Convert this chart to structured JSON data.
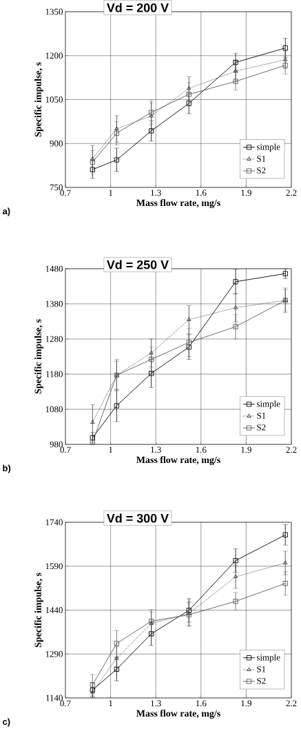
{
  "chart_data": [
    {
      "type": "line",
      "title": "Vd = 200 V",
      "xlabel": "Mass flow rate, mg/s",
      "ylabel": "Specific impulse, s",
      "annotations": [
        "a)"
      ],
      "x": [
        0.88,
        1.04,
        1.27,
        1.52,
        1.83,
        2.16
      ],
      "xlim": [
        0.7,
        2.2
      ],
      "xticks": [
        0.7,
        1,
        1.3,
        1.6,
        1.9,
        2.2
      ],
      "ylim": [
        750,
        1350
      ],
      "yticks": [
        750,
        900,
        1050,
        1200,
        1350
      ],
      "grid": true,
      "legend": "bottom right",
      "series": [
        {
          "name": "simple",
          "color": "#000000",
          "marker": "square",
          "line_style": "solid",
          "values": [
            811,
            844,
            943,
            1037,
            1177,
            1226
          ],
          "errors": [
            30,
            40,
            35,
            35,
            30,
            33
          ]
        },
        {
          "name": "S1",
          "color": "#3a3a3a",
          "marker": "triangle",
          "line_style": "dotted",
          "values": [
            848,
            950,
            994,
            1088,
            1147,
            1186
          ],
          "errors": [
            45,
            45,
            45,
            40,
            35,
            30
          ]
        },
        {
          "name": "S2",
          "color": "#5a5a5a",
          "marker": "square",
          "line_style": "solid",
          "values": [
            836,
            935,
            1006,
            1068,
            1112,
            1167
          ],
          "errors": [
            40,
            40,
            40,
            40,
            30,
            30
          ]
        }
      ]
    },
    {
      "type": "line",
      "title": "Vd = 250 V",
      "xlabel": "Mass flow rate, mg/s",
      "ylabel": "Specific impulse, s",
      "annotations": [
        "b)"
      ],
      "x": [
        0.88,
        1.04,
        1.27,
        1.52,
        1.83,
        2.16
      ],
      "xlim": [
        0.7,
        2.2
      ],
      "xticks": [
        0.7,
        1,
        1.3,
        1.6,
        1.9,
        2.2
      ],
      "ylim": [
        980,
        1480
      ],
      "yticks": [
        980,
        1080,
        1180,
        1280,
        1380,
        1480
      ],
      "grid": true,
      "legend": "bottom right",
      "series": [
        {
          "name": "simple",
          "color": "#000000",
          "marker": "square",
          "line_style": "solid",
          "values": [
            999,
            1090,
            1182,
            1257,
            1443,
            1466
          ],
          "errors": [
            15,
            45,
            40,
            35,
            35,
            14
          ]
        },
        {
          "name": "S1",
          "color": "#3a3a3a",
          "marker": "triangle",
          "line_style": "dotted",
          "values": [
            1043,
            1177,
            1240,
            1335,
            1369,
            1390
          ],
          "errors": [
            50,
            40,
            40,
            40,
            40,
            35
          ]
        },
        {
          "name": "S2",
          "color": "#5a5a5a",
          "marker": "square",
          "line_style": "solid",
          "values": [
            986,
            1177,
            1222,
            1270,
            1315,
            1390
          ],
          "errors": [
            6,
            45,
            35,
            40,
            35,
            30
          ]
        }
      ]
    },
    {
      "type": "line",
      "title": "Vd = 300 V",
      "xlabel": "Mass flow rate, mg/s",
      "ylabel": "Specific impulse, s",
      "annotations": [
        "c)"
      ],
      "x": [
        0.88,
        1.04,
        1.27,
        1.52,
        1.83,
        2.16
      ],
      "xlim": [
        0.7,
        2.2
      ],
      "xticks": [
        0.7,
        1,
        1.3,
        1.6,
        1.9,
        2.2
      ],
      "ylim": [
        1140,
        1740
      ],
      "yticks": [
        1140,
        1290,
        1440,
        1590,
        1740
      ],
      "grid": true,
      "legend": "bottom right",
      "series": [
        {
          "name": "simple",
          "color": "#000000",
          "marker": "square",
          "line_style": "solid",
          "values": [
            1167,
            1238,
            1359,
            1439,
            1609,
            1697
          ],
          "errors": [
            25,
            40,
            40,
            40,
            40,
            35
          ]
        },
        {
          "name": "S1",
          "color": "#3a3a3a",
          "marker": "triangle",
          "line_style": "dotted",
          "values": [
            1160,
            1275,
            1394,
            1428,
            1554,
            1601
          ],
          "errors": [
            15,
            40,
            40,
            40,
            40,
            40
          ]
        },
        {
          "name": "S2",
          "color": "#5a5a5a",
          "marker": "square",
          "line_style": "solid",
          "values": [
            1185,
            1326,
            1402,
            1424,
            1470,
            1531
          ],
          "errors": [
            35,
            45,
            40,
            40,
            30,
            40
          ]
        }
      ]
    }
  ]
}
